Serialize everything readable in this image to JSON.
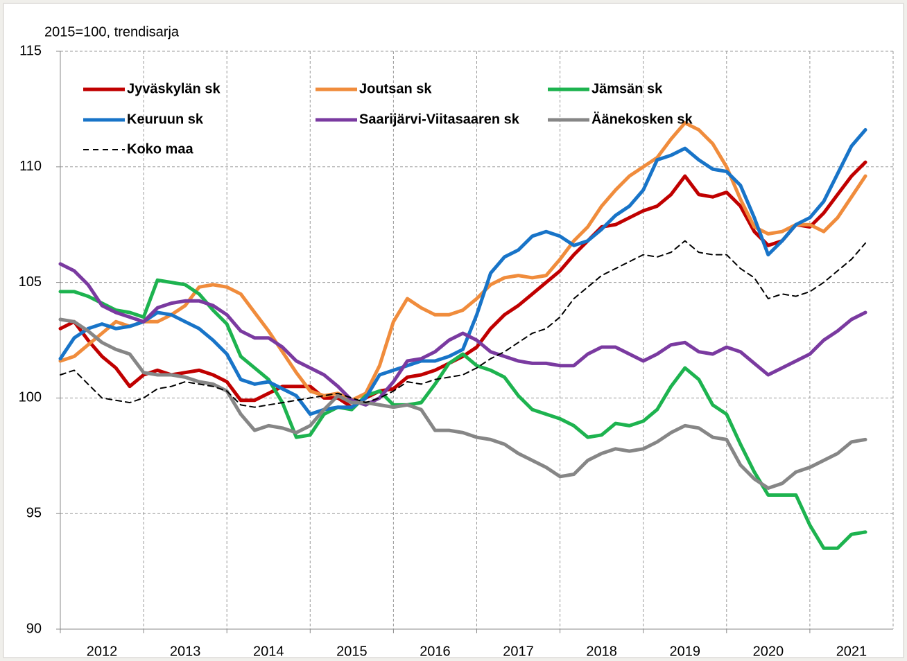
{
  "chart_data": {
    "type": "line",
    "y_label": "2015=100, trendisarja",
    "categories": [
      "2012",
      null,
      null,
      null,
      null,
      null,
      "2013",
      null,
      null,
      null,
      null,
      null,
      "2014",
      null,
      null,
      null,
      null,
      null,
      "2015",
      null,
      null,
      null,
      null,
      null,
      "2016",
      null,
      null,
      null,
      null,
      null,
      "2017",
      null,
      null,
      null,
      null,
      null,
      "2018",
      null,
      null,
      null,
      null,
      null,
      "2019",
      null,
      null,
      null,
      null,
      null,
      "2020",
      null,
      null,
      null,
      null,
      null,
      "2021",
      null,
      null,
      null,
      null
    ],
    "ylim": [
      90,
      115
    ],
    "yticks": [
      90,
      95,
      100,
      105,
      110,
      115
    ],
    "grid": true,
    "series": [
      {
        "name": "Jyväskylän sk",
        "color": "#c00000",
        "line_style": "solid",
        "values": [
          103.0,
          103.3,
          102.5,
          101.8,
          101.3,
          100.5,
          101.0,
          101.2,
          101.0,
          101.1,
          101.2,
          101.0,
          100.7,
          99.9,
          99.9,
          100.2,
          100.5,
          100.5,
          100.5,
          100.0,
          100.0,
          99.6,
          100.0,
          100.3,
          100.4,
          100.9,
          101.0,
          101.2,
          101.5,
          101.8,
          102.2,
          103.0,
          103.6,
          104.0,
          104.5,
          105.0,
          105.5,
          106.2,
          106.8,
          107.4,
          107.5,
          107.8,
          108.1,
          108.3,
          108.8,
          109.6,
          108.8,
          108.7,
          108.9,
          108.3,
          107.2,
          106.6,
          106.8,
          107.5,
          107.4,
          108.0,
          108.8,
          109.6,
          110.2
        ]
      },
      {
        "name": "Joutsan sk",
        "color": "#f08c3c",
        "line_style": "solid",
        "values": [
          101.6,
          101.8,
          102.3,
          102.8,
          103.3,
          103.1,
          103.3,
          103.3,
          103.6,
          104.0,
          104.8,
          104.9,
          104.8,
          104.5,
          103.7,
          102.9,
          102.0,
          101.1,
          100.3,
          100.1,
          100.2,
          99.9,
          100.2,
          101.4,
          103.3,
          104.3,
          103.9,
          103.6,
          103.6,
          103.8,
          104.3,
          104.9,
          105.2,
          105.3,
          105.2,
          105.3,
          106.0,
          106.8,
          107.4,
          108.3,
          109.0,
          109.6,
          110.0,
          110.4,
          111.2,
          111.9,
          111.6,
          111.0,
          110.0,
          108.6,
          107.4,
          107.1,
          107.2,
          107.5,
          107.5,
          107.2,
          107.8,
          108.7,
          109.6
        ]
      },
      {
        "name": "Jämsän sk",
        "color": "#1db34f",
        "line_style": "solid",
        "values": [
          104.6,
          104.6,
          104.4,
          104.1,
          103.8,
          103.7,
          103.5,
          105.1,
          105.0,
          104.9,
          104.5,
          103.8,
          103.2,
          101.8,
          101.3,
          100.8,
          99.8,
          98.3,
          98.4,
          99.3,
          99.6,
          99.5,
          100.1,
          100.3,
          99.7,
          99.7,
          99.8,
          100.6,
          101.5,
          101.9,
          101.4,
          101.2,
          100.9,
          100.1,
          99.5,
          99.3,
          99.1,
          98.8,
          98.3,
          98.4,
          98.9,
          98.8,
          99.0,
          99.5,
          100.5,
          101.3,
          100.8,
          99.7,
          99.3,
          98.0,
          96.8,
          95.8,
          95.8,
          95.8,
          94.5,
          93.5,
          93.5,
          94.1,
          94.2
        ]
      },
      {
        "name": "Keuruun sk",
        "color": "#1874c8",
        "line_style": "solid",
        "values": [
          101.7,
          102.6,
          103.0,
          103.2,
          103.0,
          103.1,
          103.3,
          103.7,
          103.6,
          103.3,
          103.0,
          102.5,
          101.9,
          100.8,
          100.6,
          100.7,
          100.4,
          100.1,
          99.3,
          99.5,
          99.6,
          99.6,
          100.0,
          101.0,
          101.2,
          101.4,
          101.6,
          101.6,
          101.8,
          102.1,
          103.6,
          105.4,
          106.1,
          106.4,
          107.0,
          107.2,
          107.0,
          106.6,
          106.8,
          107.3,
          107.9,
          108.3,
          109.0,
          110.3,
          110.5,
          110.8,
          110.3,
          109.9,
          109.8,
          109.2,
          107.8,
          106.2,
          106.8,
          107.5,
          107.8,
          108.5,
          109.7,
          110.9,
          111.6
        ]
      },
      {
        "name": "Saarijärvi-Viitasaaren sk",
        "color": "#7a3aa0",
        "line_style": "solid",
        "values": [
          105.8,
          105.5,
          104.9,
          104.0,
          103.7,
          103.5,
          103.3,
          103.9,
          104.1,
          104.2,
          104.2,
          104.0,
          103.6,
          102.9,
          102.6,
          102.6,
          102.2,
          101.6,
          101.3,
          101.0,
          100.5,
          99.9,
          99.7,
          100.0,
          100.7,
          101.6,
          101.7,
          102.0,
          102.5,
          102.8,
          102.5,
          102.0,
          101.8,
          101.6,
          101.5,
          101.5,
          101.4,
          101.4,
          101.9,
          102.2,
          102.2,
          101.9,
          101.6,
          101.9,
          102.3,
          102.4,
          102.0,
          101.9,
          102.2,
          102.0,
          101.5,
          101.0,
          101.3,
          101.6,
          101.9,
          102.5,
          102.9,
          103.4,
          103.7
        ]
      },
      {
        "name": "Äänekosken sk",
        "color": "#868686",
        "line_style": "solid",
        "values": [
          103.4,
          103.3,
          102.9,
          102.4,
          102.1,
          101.9,
          101.1,
          101.0,
          101.0,
          100.9,
          100.7,
          100.6,
          100.3,
          99.3,
          98.6,
          98.8,
          98.7,
          98.5,
          98.8,
          99.5,
          100.1,
          99.8,
          99.8,
          99.7,
          99.6,
          99.7,
          99.5,
          98.6,
          98.6,
          98.5,
          98.3,
          98.2,
          98.0,
          97.6,
          97.3,
          97.0,
          96.6,
          96.7,
          97.3,
          97.6,
          97.8,
          97.7,
          97.8,
          98.1,
          98.5,
          98.8,
          98.7,
          98.3,
          98.2,
          97.1,
          96.5,
          96.1,
          96.3,
          96.8,
          97.0,
          97.3,
          97.6,
          98.1,
          98.2
        ]
      },
      {
        "name": "Koko maa",
        "color": "#000000",
        "line_style": "dashed",
        "values": [
          101.0,
          101.2,
          100.6,
          100.0,
          99.9,
          99.8,
          100.0,
          100.4,
          100.5,
          100.7,
          100.6,
          100.5,
          100.3,
          99.7,
          99.6,
          99.7,
          99.8,
          99.9,
          100.0,
          100.1,
          100.2,
          100.0,
          99.8,
          100.0,
          100.3,
          100.7,
          100.6,
          100.8,
          100.9,
          101.0,
          101.3,
          101.7,
          102.0,
          102.4,
          102.8,
          103.0,
          103.5,
          104.3,
          104.8,
          105.3,
          105.6,
          105.9,
          106.2,
          106.1,
          106.3,
          106.8,
          106.3,
          106.2,
          106.2,
          105.6,
          105.2,
          104.3,
          104.5,
          104.4,
          104.6,
          105.0,
          105.5,
          106.0,
          106.7
        ]
      }
    ]
  }
}
